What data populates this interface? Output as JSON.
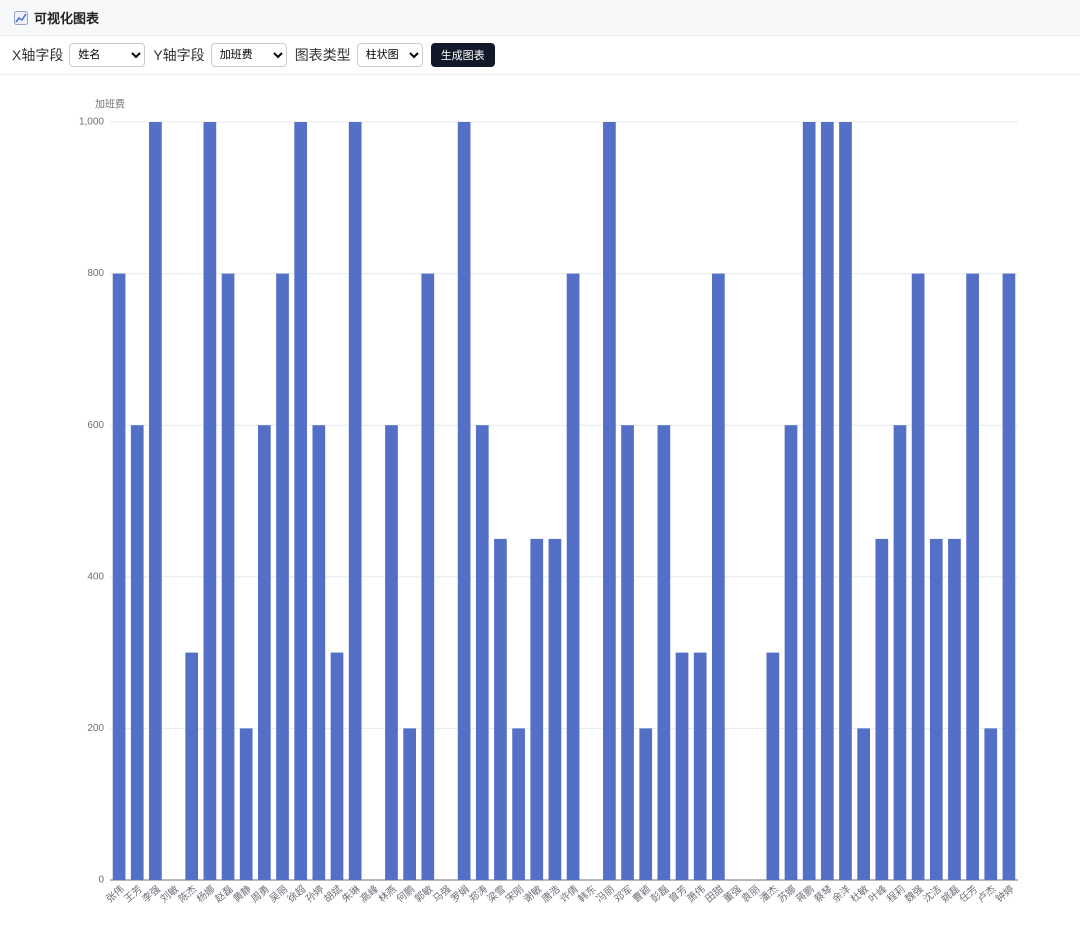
{
  "header": {
    "title": "可视化图表"
  },
  "controls": {
    "x_label": "X轴字段",
    "x_value": "姓名",
    "y_label": "Y轴字段",
    "y_value": "加班费",
    "type_label": "图表类型",
    "type_value": "柱状图",
    "button": "生成图表"
  },
  "chart_data": {
    "type": "bar",
    "y_axis_label": "加班费",
    "color": "#5470c6",
    "grid": true,
    "categories": [
      "张伟",
      "王芳",
      "李强",
      "刘敏",
      "陈杰",
      "杨娜",
      "赵磊",
      "黄静",
      "周勇",
      "吴丽",
      "徐超",
      "孙婷",
      "胡斌",
      "朱琳",
      "高峰",
      "林燕",
      "何鹏",
      "郭敏",
      "马强",
      "罗娟",
      "郑涛",
      "梁雪",
      "宋刚",
      "谢敏",
      "唐浩",
      "许倩",
      "韩东",
      "冯丽",
      "邓军",
      "曹颖",
      "彭磊",
      "曾芳",
      "萧伟",
      "田甜",
      "董强",
      "袁丽",
      "潘杰",
      "苏娜",
      "蒋鹏",
      "蔡琴",
      "余洋",
      "杜敏",
      "叶峰",
      "程莉",
      "魏强",
      "沈洁",
      "姚磊",
      "任芳",
      "卢杰",
      "钟婷"
    ],
    "values": [
      800,
      600,
      1000,
      0,
      300,
      1000,
      800,
      200,
      600,
      800,
      1000,
      600,
      300,
      1000,
      0,
      600,
      200,
      800,
      0,
      1000,
      600,
      450,
      200,
      450,
      450,
      800,
      0,
      1000,
      600,
      200,
      600,
      300,
      300,
      800,
      0,
      0,
      300,
      600,
      1000,
      1000,
      1000,
      200,
      450,
      600,
      800,
      450,
      450,
      800,
      200,
      800
    ],
    "ylim": [
      0,
      1000
    ],
    "yticks": [
      0,
      200,
      400,
      600,
      800,
      {
        "value": 1000,
        "label": "1,000"
      }
    ]
  }
}
